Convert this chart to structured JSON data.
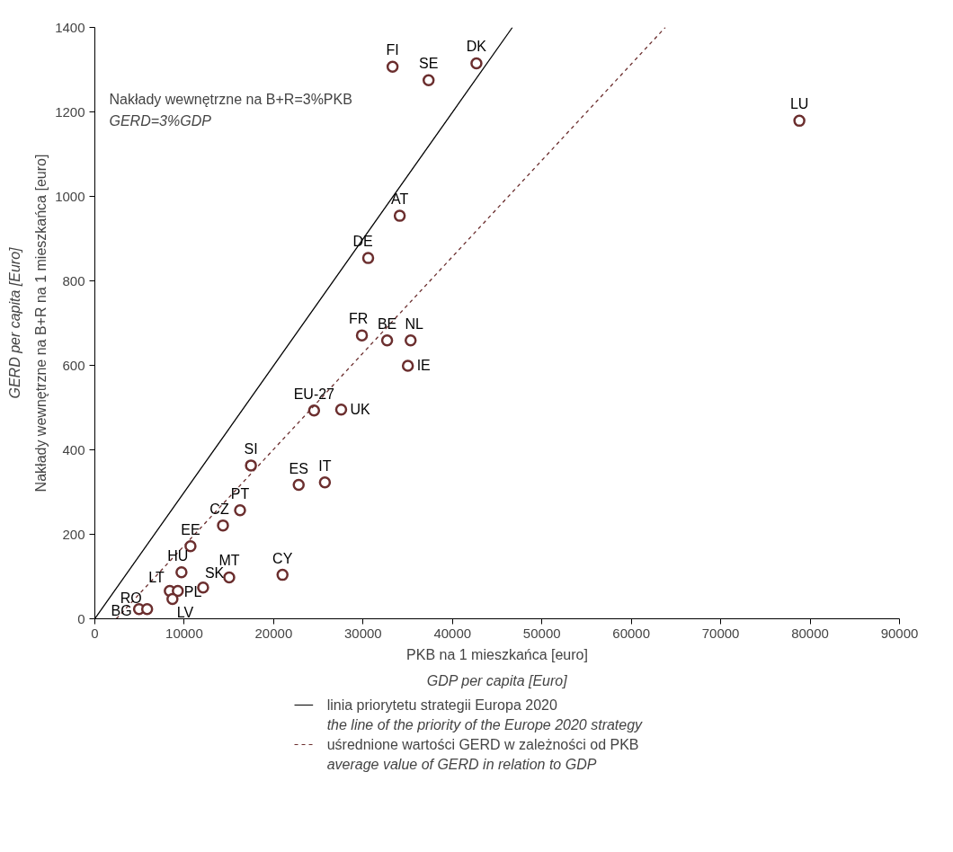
{
  "chart_data": {
    "type": "scatter",
    "xlabel": "PKB na 1 mieszkańca [euro]\nGDP per capita [Euro]",
    "ylabel": "Nakłady wewnętrzne na B+R na 1 mieszkańca [euro]\nGERD per capita [Euro]",
    "xlim": [
      0,
      90000
    ],
    "ylim": [
      0,
      1400
    ],
    "xticks": [
      0,
      10000,
      20000,
      30000,
      40000,
      50000,
      60000,
      70000,
      80000,
      90000
    ],
    "yticks": [
      0,
      200,
      400,
      600,
      800,
      1000,
      1200,
      1400
    ],
    "grid": false,
    "legend": "bottom",
    "series": [
      {
        "marker": "circle",
        "color": "#6b2e2e",
        "x": [
          33300,
          37330,
          42680,
          78800,
          34100,
          30570,
          29870,
          32690,
          35320,
          35010,
          24520,
          27550,
          17460,
          22800,
          25730,
          16240,
          14330,
          10700,
          9690,
          15030,
          20990,
          12110,
          8380,
          9280,
          8680,
          4940,
          5850
        ],
        "values": [
          1307,
          1275,
          1315,
          1179,
          954,
          854,
          671,
          659,
          659,
          599,
          493,
          495,
          363,
          317,
          323,
          257,
          221,
          172,
          110,
          98,
          104,
          74,
          66,
          66,
          47,
          23,
          23
        ]
      },
      {
        "type": "line",
        "name": "linia priorytetu strategii Europa 2020\nthe line of the priority of the Europe 2020 strategy",
        "color": "#000000",
        "line_style": "solid",
        "marker": "none",
        "x": [
          0,
          46700
        ],
        "values": [
          0,
          1400
        ]
      },
      {
        "type": "line",
        "name": "uśrednione wartości GERD w zależności od PKB\naverage value of GERD in relation to GDP",
        "color": "#6b2e2e",
        "line_style": "dashed",
        "marker": "none",
        "x": [
          2400,
          63800
        ],
        "values": [
          0,
          1400
        ]
      }
    ],
    "annotations": [
      "Nakłady wewnętrzne na B+R=3%PKB\nGERD=3%GDP",
      {
        "text": "FI",
        "x": 33300,
        "y": 1307
      },
      {
        "text": "SE",
        "x": 37330,
        "y": 1275
      },
      {
        "text": "DK",
        "x": 42680,
        "y": 1315
      },
      {
        "text": "LU",
        "x": 78800,
        "y": 1179
      },
      {
        "text": "AT",
        "x": 34100,
        "y": 954
      },
      {
        "text": "DE",
        "x": 30570,
        "y": 854
      },
      {
        "text": "FR",
        "x": 29870,
        "y": 671
      },
      {
        "text": "BE",
        "x": 32690,
        "y": 659
      },
      {
        "text": "NL",
        "x": 35320,
        "y": 659
      },
      {
        "text": "IE",
        "x": 35010,
        "y": 599
      },
      {
        "text": "EU-27",
        "x": 24520,
        "y": 493
      },
      {
        "text": "UK",
        "x": 27550,
        "y": 495
      },
      {
        "text": "SI",
        "x": 17460,
        "y": 363
      },
      {
        "text": "ES",
        "x": 22800,
        "y": 317
      },
      {
        "text": "IT",
        "x": 25730,
        "y": 323
      },
      {
        "text": "PT",
        "x": 16240,
        "y": 257
      },
      {
        "text": "CZ",
        "x": 14330,
        "y": 221
      },
      {
        "text": "EE",
        "x": 10700,
        "y": 172
      },
      {
        "text": "HU",
        "x": 9690,
        "y": 110
      },
      {
        "text": "MT",
        "x": 15030,
        "y": 98
      },
      {
        "text": "CY",
        "x": 20990,
        "y": 104
      },
      {
        "text": "SK",
        "x": 12110,
        "y": 74
      },
      {
        "text": "LT",
        "x": 8380,
        "y": 66
      },
      {
        "text": "PL",
        "x": 9280,
        "y": 66
      },
      {
        "text": "LV",
        "x": 8680,
        "y": 47
      },
      {
        "text": "BG",
        "x": 4940,
        "y": 23
      },
      {
        "text": "RO",
        "x": 5850,
        "y": 23
      }
    ]
  }
}
